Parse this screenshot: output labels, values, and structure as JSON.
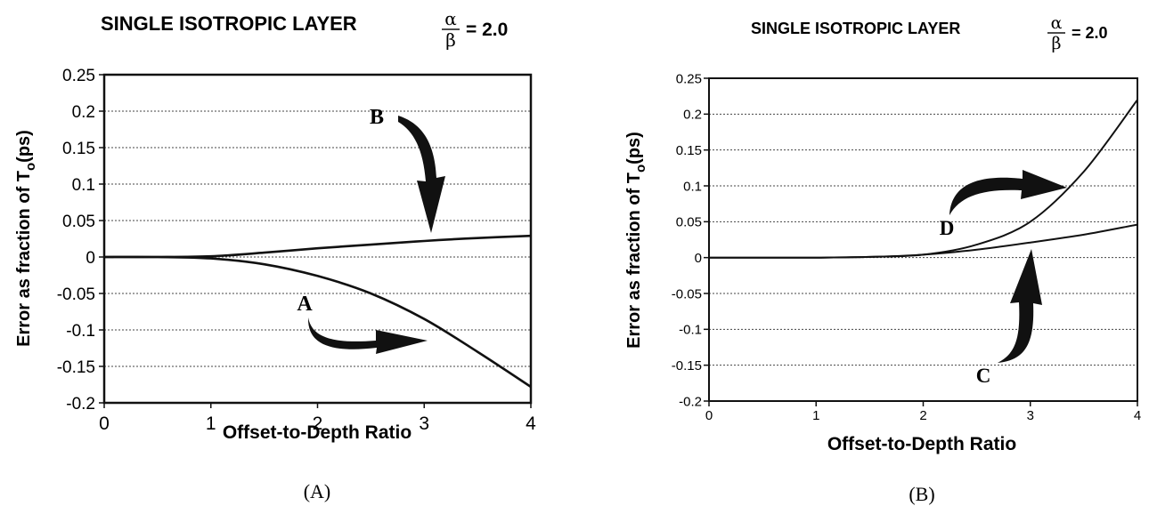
{
  "chart_data": [
    {
      "type": "line",
      "title": "SINGLE ISOTROPIC LAYER",
      "title_ratio": {
        "numerator": "α",
        "denominator": "β",
        "value": "= 2.0"
      },
      "xlabel": "Offset-to-Depth Ratio",
      "ylabel": "Error as fraction of T",
      "ylabel_subscript": "o",
      "ylabel_suffix": "(ps)",
      "xlim": [
        0,
        4
      ],
      "ylim": [
        -0.2,
        0.25
      ],
      "x_ticks": [
        "0",
        "1",
        "2",
        "3",
        "4"
      ],
      "y_ticks": [
        "0.25",
        "0.2",
        "0.15",
        "0.1",
        "0.05",
        "0",
        "-0.05",
        "-0.1",
        "-0.15",
        "-0.2"
      ],
      "grid": true,
      "caption": "(A)",
      "series": [
        {
          "name": "B",
          "x": [
            0,
            0.5,
            1,
            1.5,
            2,
            2.5,
            3,
            3.5,
            4
          ],
          "y": [
            0,
            0,
            0.001,
            0.006,
            0.012,
            0.017,
            0.022,
            0.026,
            0.029
          ]
        },
        {
          "name": "A",
          "x": [
            0,
            0.5,
            1,
            1.5,
            2,
            2.5,
            3,
            3.5,
            4
          ],
          "y": [
            0,
            0,
            -0.002,
            -0.01,
            -0.026,
            -0.05,
            -0.085,
            -0.13,
            -0.178
          ]
        }
      ],
      "annotations": [
        {
          "text": "B",
          "x": 2.55,
          "y": 0.15,
          "arrow_to": [
            3.02,
            0.025
          ]
        },
        {
          "text": "A",
          "x": 1.73,
          "y": -0.065,
          "arrow_to": [
            2.95,
            -0.125
          ]
        }
      ]
    },
    {
      "type": "line",
      "title": "SINGLE ISOTROPIC LAYER",
      "title_ratio": {
        "numerator": "α",
        "denominator": "β",
        "value": "= 2.0"
      },
      "xlabel": "Offset-to-Depth Ratio",
      "ylabel": "Error as fraction of T",
      "ylabel_subscript": "o",
      "ylabel_suffix": "(ps)",
      "xlim": [
        0,
        4
      ],
      "ylim": [
        -0.2,
        0.25
      ],
      "x_ticks": [
        "0",
        "1",
        "2",
        "3",
        "4"
      ],
      "y_ticks": [
        "0.25",
        "0.2",
        "0.15",
        "0.1",
        "0.05",
        "0",
        "-0.05",
        "-0.1",
        "-0.15",
        "-0.2"
      ],
      "grid": true,
      "caption": "(B)",
      "series": [
        {
          "name": "D",
          "x": [
            0,
            0.5,
            1,
            1.5,
            2,
            2.5,
            3,
            3.5,
            4
          ],
          "y": [
            0,
            0,
            0,
            0.001,
            0.004,
            0.018,
            0.05,
            0.12,
            0.22
          ]
        },
        {
          "name": "C",
          "x": [
            0,
            0.5,
            1,
            1.5,
            2,
            2.5,
            3,
            3.5,
            4
          ],
          "y": [
            0,
            0,
            0,
            0.001,
            0.004,
            0.011,
            0.021,
            0.032,
            0.046
          ]
        }
      ],
      "annotations": [
        {
          "text": "D",
          "x": 2.35,
          "y": 0.03,
          "arrow_to": [
            3.35,
            0.09
          ]
        },
        {
          "text": "C",
          "x": 2.72,
          "y": -0.165,
          "arrow_to": [
            3.0,
            0.015
          ]
        }
      ]
    }
  ]
}
